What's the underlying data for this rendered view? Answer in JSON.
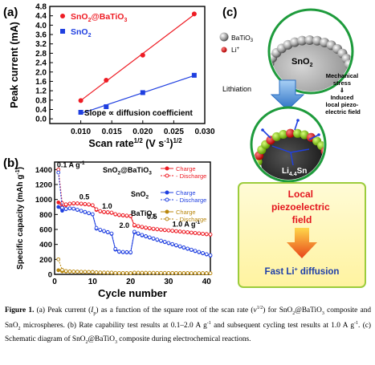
{
  "figure": {
    "panel_a_label": "(a)",
    "panel_b_label": "(b)",
    "panel_c_label": "(c)"
  },
  "caption": {
    "label": "Figure 1.",
    "text": "(a) Peak current (Ip) as a function of the square root of the scan rate (ν1/2) for SnO2@BaTiO3 composite and SnO2 microspheres. (b) Rate capability test results at 0.1–2.0 A g-1 and subsequent cycling test results at 1.0 A g-1. (c) Schematic diagram of SnO2@BaTiO3 composite during electrochemical reactions."
  },
  "chart_data": [
    {
      "type": "scatter",
      "panel": "(a)",
      "xlabel": "Scan rate1/2 (V s-1)1/2",
      "ylabel": "Peak current (mA)",
      "xlim": [
        0.005,
        0.03
      ],
      "ylim": [
        -0.2,
        4.8
      ],
      "xticks": [
        "0.010",
        "0.015",
        "0.020",
        "0.025",
        "0.030"
      ],
      "yticks": [
        "0.0",
        "0.4",
        "0.8",
        "1.2",
        "1.6",
        "2.0",
        "2.4",
        "2.8",
        "3.2",
        "3.6",
        "4.0",
        "4.4",
        "4.8"
      ],
      "legend_position": "top-left",
      "annotation": "Slope ∝ diffusion coefficient",
      "series": [
        {
          "name": "SnO2@BaTiO3",
          "color": "#ee1c24",
          "marker": "circle",
          "x": [
            0.01,
            0.0141,
            0.02,
            0.0283
          ],
          "y": [
            0.78,
            1.65,
            2.72,
            4.48
          ]
        },
        {
          "name": "SnO2",
          "color": "#1f3fe0",
          "marker": "square",
          "x": [
            0.01,
            0.0141,
            0.02,
            0.0283
          ],
          "y": [
            0.28,
            0.52,
            1.12,
            1.86
          ]
        }
      ]
    },
    {
      "type": "line",
      "panel": "(b)",
      "xlabel": "Cycle number",
      "ylabel": "Specific capacity (mAh g-1)",
      "xlim": [
        0,
        41
      ],
      "ylim": [
        0,
        1500
      ],
      "xticks": [
        "0",
        "10",
        "20",
        "30",
        "40"
      ],
      "yticks": [
        "0",
        "200",
        "400",
        "600",
        "800",
        "1000",
        "1200",
        "1400"
      ],
      "legend_position": "top-right",
      "rate_labels": [
        "0.1 A g-1",
        "0.5",
        "1.0",
        "2.0",
        "0.5",
        "1.0 A g-1"
      ],
      "series": [
        {
          "name": "SnO2@BaTiO3 Charge",
          "color": "#ee1c24",
          "marker": "filled-circle",
          "y": [
            960,
            900,
            925,
            940,
            945,
            945,
            940,
            935,
            930,
            920,
            860,
            840,
            830,
            825,
            820,
            800,
            790,
            785,
            780,
            775,
            650,
            640,
            630,
            620,
            612,
            605,
            600,
            595,
            590,
            585,
            580,
            575,
            570,
            565,
            560,
            555,
            550,
            545,
            540,
            535,
            530
          ]
        },
        {
          "name": "SnO2@BaTiO3 Discharge",
          "color": "#ee1c24",
          "marker": "open-circle",
          "y": [
            1400,
            950,
            935,
            945,
            950,
            948,
            945,
            940,
            935,
            925,
            870,
            845,
            835,
            830,
            825,
            805,
            795,
            790,
            785,
            780,
            660,
            645,
            635,
            625,
            617,
            610,
            604,
            598,
            593,
            588,
            583,
            578,
            573,
            568,
            563,
            558,
            553,
            548,
            543,
            538,
            533
          ]
        },
        {
          "name": "SnO2 Charge",
          "color": "#1f3fe0",
          "marker": "filled-circle",
          "y": [
            900,
            850,
            870,
            880,
            875,
            860,
            845,
            830,
            815,
            800,
            610,
            590,
            575,
            560,
            540,
            330,
            300,
            295,
            292,
            290,
            560,
            540,
            520,
            505,
            490,
            475,
            460,
            445,
            430,
            415,
            400,
            385,
            370,
            355,
            340,
            325,
            310,
            295,
            280,
            265,
            250
          ]
        },
        {
          "name": "SnO2 Discharge",
          "color": "#1f3fe0",
          "marker": "open-circle",
          "y": [
            1360,
            890,
            875,
            882,
            878,
            864,
            849,
            834,
            819,
            804,
            620,
            596,
            580,
            565,
            546,
            340,
            305,
            300,
            297,
            295,
            570,
            548,
            527,
            510,
            495,
            480,
            465,
            450,
            435,
            420,
            405,
            390,
            375,
            360,
            345,
            330,
            315,
            300,
            285,
            270,
            255
          ]
        },
        {
          "name": "BaTiO3 Charge",
          "color": "#b8860b",
          "marker": "filled-circle",
          "y": [
            55,
            40,
            38,
            36,
            35,
            34,
            33,
            32,
            31,
            30,
            25,
            24,
            23,
            22,
            22,
            18,
            17,
            17,
            16,
            16,
            22,
            21,
            20,
            20,
            19,
            19,
            18,
            18,
            18,
            17,
            17,
            17,
            16,
            16,
            16,
            15,
            15,
            15,
            15,
            14,
            14
          ]
        },
        {
          "name": "BaTiO3 Discharge",
          "color": "#b8860b",
          "marker": "open-circle",
          "y": [
            200,
            60,
            45,
            40,
            38,
            36,
            35,
            34,
            33,
            32,
            27,
            25,
            24,
            23,
            23,
            19,
            18,
            18,
            17,
            17,
            23,
            22,
            21,
            21,
            20,
            20,
            19,
            19,
            19,
            18,
            18,
            18,
            17,
            17,
            17,
            16,
            16,
            16,
            16,
            15,
            15
          ]
        }
      ],
      "legend_groups": [
        {
          "name": "SnO2@BaTiO3",
          "items": [
            "Charge",
            "Discharge"
          ],
          "color": "#ee1c24"
        },
        {
          "name": "SnO2",
          "items": [
            "Charge",
            "Discharge"
          ],
          "color": "#1f3fe0"
        },
        {
          "name": "BaTiO3",
          "items": [
            "Charge",
            "Discharge"
          ],
          "color": "#b8860b"
        }
      ]
    }
  ],
  "schematic": {
    "legend_batio3": "BaTiO3",
    "legend_li": "Li+",
    "core_top": "SnO2",
    "lithiation": "Lithiation",
    "stress_note": "Mechanical stress ⇓ Induced local piezo-electric field",
    "core_bottom": "Li4.4Sn",
    "box_title": "Local piezoelectric field",
    "box_result": "Fast Li+ diffusion"
  }
}
